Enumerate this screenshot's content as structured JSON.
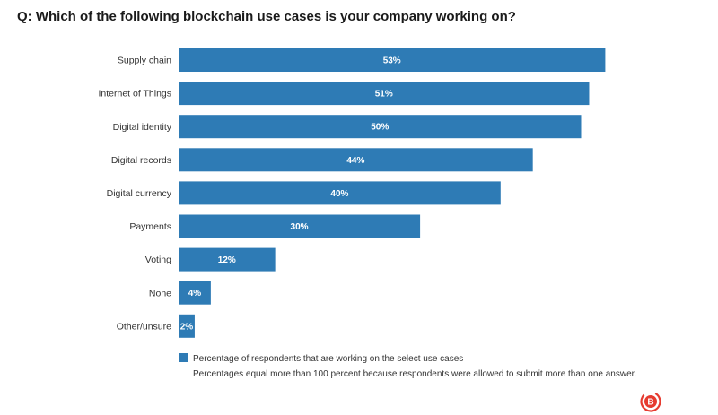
{
  "title": "Q: Which of the following blockchain use cases is your company working on?",
  "colors": {
    "bar": "#2e7bb5",
    "logo": "#e63b30"
  },
  "chart_data": {
    "type": "bar",
    "orientation": "horizontal",
    "categories": [
      "Supply chain",
      "Internet of Things",
      "Digital identity",
      "Digital records",
      "Digital currency",
      "Payments",
      "Voting",
      "None",
      "Other/unsure"
    ],
    "values": [
      53,
      51,
      50,
      44,
      40,
      30,
      12,
      4,
      2
    ],
    "value_labels": [
      "53%",
      "51%",
      "50%",
      "44%",
      "40%",
      "30%",
      "12%",
      "4%",
      "2%"
    ],
    "unit": "%",
    "title": "Q: Which of the following blockchain use cases is your company working on?",
    "xlabel": "",
    "ylabel": "",
    "grid": false,
    "legend": {
      "position": "bottom",
      "entries": [
        "Percentage of respondents that are working on the select use cases"
      ]
    }
  },
  "legend_label": "Percentage of respondents that are working on the select use cases",
  "footnote": "Percentages equal more than 100 percent because respondents were allowed to submit more than one answer.",
  "logo": {
    "icon": "bitcoin-logo-icon",
    "glyph": "B"
  }
}
